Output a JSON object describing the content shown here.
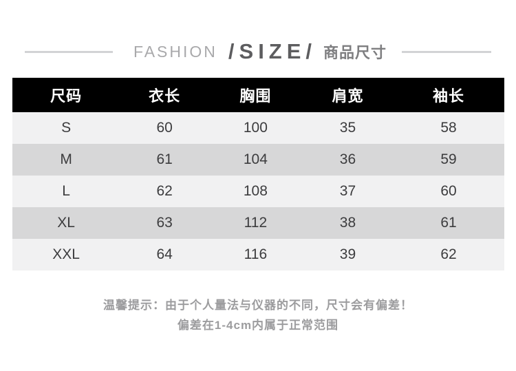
{
  "header": {
    "brand": "FASHION",
    "size_mark": "/SIZE/",
    "title_cn": "商品尺寸"
  },
  "chart_data": {
    "type": "table",
    "title": "商品尺寸",
    "columns": [
      "尺码",
      "衣长",
      "胸围",
      "肩宽",
      "袖长"
    ],
    "rows": [
      [
        "S",
        "60",
        "100",
        "35",
        "58"
      ],
      [
        "M",
        "61",
        "104",
        "36",
        "59"
      ],
      [
        "L",
        "62",
        "108",
        "37",
        "60"
      ],
      [
        "XL",
        "63",
        "112",
        "38",
        "61"
      ],
      [
        "XXL",
        "64",
        "116",
        "39",
        "62"
      ]
    ]
  },
  "notes": {
    "line1": "温馨提示：由于个人量法与仪器的不同，尺寸会有偏差！",
    "line2": "偏差在1-4cm内属于正常范围"
  },
  "colors": {
    "table_header_bg": "#000000",
    "table_header_text": "#ffffff",
    "row_light": "#f1f1f2",
    "row_dark": "#d7d7d8",
    "cell_text": "#3c3c3e",
    "note_text": "#9c9c9e",
    "decor_line": "#d2d3d5",
    "brand_text": "#a9a9ab",
    "size_mark_text": "#5d5d5f"
  }
}
